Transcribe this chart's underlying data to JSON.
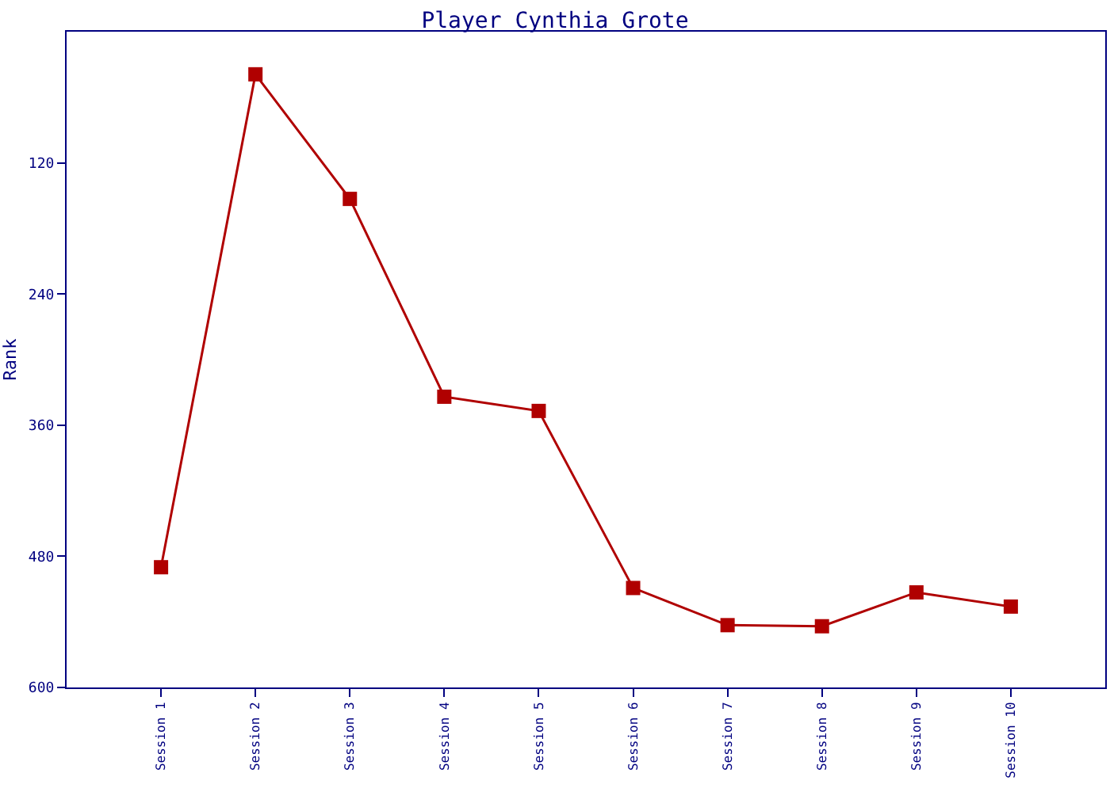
{
  "chart_data": {
    "type": "line",
    "title": "Player Cynthia Grote",
    "ylabel": "Rank",
    "categories": [
      "Session 1",
      "Session 2",
      "Session 3",
      "Session 4",
      "Session 5",
      "Session 6",
      "Session 7",
      "Session 8",
      "Session 9",
      "Session 10"
    ],
    "series": [
      {
        "color": "#b00000",
        "values": [
          490,
          39,
          153,
          334,
          347,
          509,
          543,
          544,
          513,
          526
        ]
      }
    ],
    "ylim": [
      600,
      0
    ],
    "yticks": [
      120,
      240,
      360,
      480,
      600
    ],
    "legend": false,
    "marker": "square",
    "line_style": "solid"
  }
}
